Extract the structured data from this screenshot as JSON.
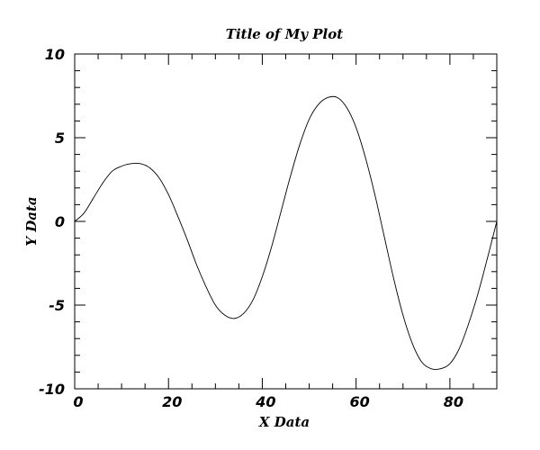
{
  "chart_data": {
    "type": "line",
    "title": "Title of My Plot",
    "xlabel": "X Data",
    "ylabel": "Y Data",
    "xlim": [
      0,
      90
    ],
    "ylim": [
      -10,
      10
    ],
    "x_ticks": [
      0,
      20,
      40,
      60,
      80
    ],
    "x_tick_labels": [
      "0",
      "20",
      "40",
      "60",
      "80"
    ],
    "y_ticks": [
      -10,
      -5,
      0,
      5,
      10
    ],
    "y_tick_labels": [
      "-10",
      "-5",
      "0",
      "5",
      "10"
    ],
    "grid": false,
    "line_color": "#000000",
    "series": [
      {
        "x": [
          0,
          2,
          4,
          6,
          8,
          10,
          12,
          14,
          16,
          18,
          20,
          22,
          24,
          26,
          28,
          30,
          32,
          34,
          36,
          38,
          40,
          42,
          44,
          46,
          48,
          50,
          52,
          54,
          56,
          58,
          60,
          62,
          64,
          66,
          68,
          70,
          72,
          74,
          76,
          78,
          80,
          82,
          84,
          86,
          88,
          90
        ],
        "values": [
          0.0,
          0.5,
          1.4,
          2.3,
          3.0,
          3.3,
          3.45,
          3.45,
          3.2,
          2.6,
          1.6,
          0.3,
          -1.1,
          -2.6,
          -3.9,
          -5.0,
          -5.6,
          -5.8,
          -5.5,
          -4.7,
          -3.3,
          -1.5,
          0.6,
          2.7,
          4.6,
          6.1,
          7.0,
          7.4,
          7.4,
          6.8,
          5.6,
          3.8,
          1.6,
          -0.9,
          -3.4,
          -5.6,
          -7.3,
          -8.4,
          -8.8,
          -8.8,
          -8.5,
          -7.6,
          -6.1,
          -4.3,
          -2.2,
          0.0
        ]
      }
    ]
  }
}
